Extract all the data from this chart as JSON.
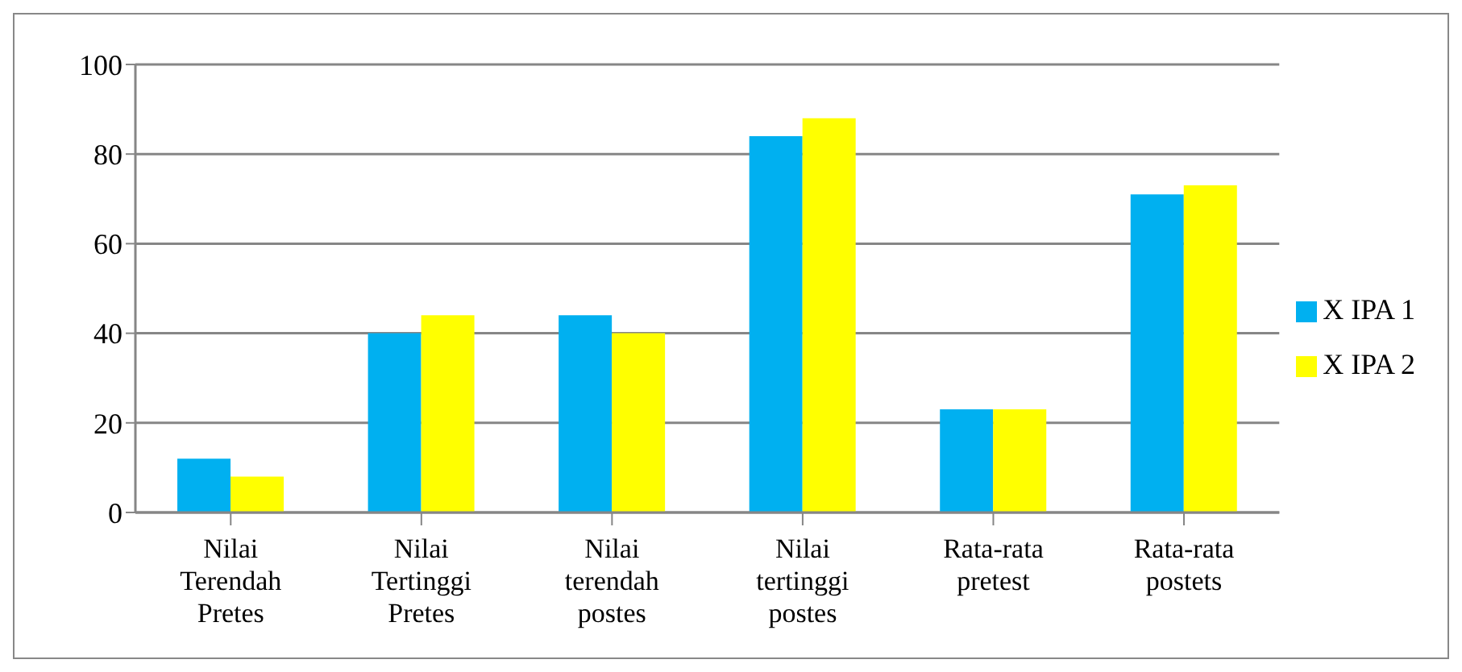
{
  "chart_data": {
    "type": "bar",
    "categories": [
      "Nilai Terendah Pretes",
      "Nilai Tertinggi Pretes",
      "Nilai terendah postes",
      "Nilai tertinggi postes",
      "Rata-rata pretest",
      "Rata-rata postets"
    ],
    "series": [
      {
        "name": "X IPA 1",
        "color": "#00b0f0",
        "values": [
          12,
          40,
          44,
          84,
          23,
          71
        ]
      },
      {
        "name": "X IPA 2",
        "color": "#ffff00",
        "values": [
          8,
          44,
          40,
          88,
          23,
          73
        ]
      }
    ],
    "ylim": [
      0,
      100
    ],
    "yticks": [
      0,
      20,
      40,
      60,
      80,
      100
    ],
    "grid": "y",
    "legend": "right"
  }
}
